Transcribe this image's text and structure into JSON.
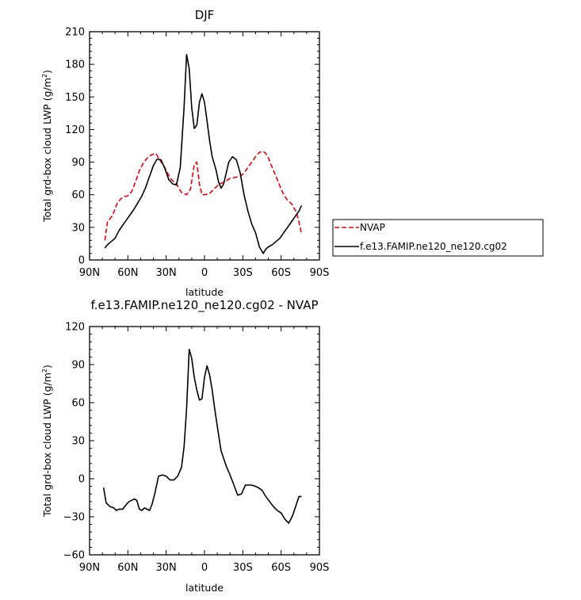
{
  "chart_data": [
    {
      "type": "line",
      "title": "DJF",
      "xlabel": "latitude",
      "ylabel": "Total grd-box cloud LWP (g/m²)",
      "ylabel_main": "Total grd-box cloud LWP (g/m",
      "ylabel_sup": "2",
      "ylabel_end": ")",
      "xlim": [
        -90,
        90
      ],
      "ylim": [
        0,
        210
      ],
      "x_ticks": [
        -90,
        -60,
        -30,
        0,
        30,
        60,
        90
      ],
      "x_tick_labels": [
        "90N",
        "60N",
        "30N",
        "0",
        "30S",
        "60S",
        "90S"
      ],
      "y_ticks": [
        0,
        30,
        60,
        90,
        120,
        150,
        180,
        210
      ],
      "y_tick_labels": [
        "0",
        "30",
        "60",
        "90",
        "120",
        "150",
        "180",
        "210"
      ],
      "legend": {
        "placement": "right",
        "entries": [
          "NVAP",
          "f.e13.FAMIP.ne120_ne120.cg02"
        ]
      },
      "series": [
        {
          "name": "NVAP",
          "color": "#e8000b",
          "dash": "dashed",
          "x": [
            -78,
            -76,
            -72,
            -68,
            -64,
            -60,
            -57,
            -54,
            -51,
            -48,
            -44,
            -41,
            -38,
            -35,
            -32,
            -29,
            -26,
            -22,
            -18,
            -14,
            -11,
            -8,
            -6,
            -4,
            -2,
            0,
            4,
            8,
            12,
            16,
            20,
            24,
            28,
            31,
            34,
            37,
            40,
            43,
            46,
            48,
            50,
            53,
            56,
            59,
            62,
            65,
            68,
            72,
            74,
            76
          ],
          "y": [
            18,
            35,
            41,
            53,
            58,
            59,
            63,
            72,
            82,
            89,
            95,
            97,
            98,
            92,
            87,
            80,
            74,
            70,
            62,
            60,
            65,
            88,
            90,
            70,
            60,
            60,
            61,
            66,
            70,
            72,
            75,
            76,
            77,
            80,
            85,
            90,
            95,
            99,
            100,
            98,
            94,
            85,
            77,
            68,
            60,
            55,
            52,
            44,
            35,
            24
          ]
        },
        {
          "name": "f.e13.FAMIP.ne120_ne120.cg02",
          "color": "#000000",
          "dash": "solid",
          "x": [
            -78,
            -76,
            -73,
            -70,
            -67,
            -64,
            -61,
            -58,
            -55,
            -52,
            -49,
            -46,
            -43,
            -40,
            -37,
            -34,
            -31,
            -28,
            -25,
            -22,
            -19,
            -16,
            -14,
            -12,
            -10,
            -8,
            -6,
            -4,
            -2,
            0,
            2,
            4,
            6,
            9,
            11,
            13,
            15,
            17,
            19,
            22,
            25,
            28,
            31,
            34,
            37,
            40,
            43,
            46,
            48,
            50,
            53,
            56,
            59,
            62,
            65,
            68,
            71,
            74,
            76
          ],
          "y": [
            11,
            14,
            17,
            20,
            27,
            32,
            37,
            42,
            47,
            53,
            59,
            67,
            77,
            87,
            93,
            92,
            84,
            74,
            70,
            69,
            85,
            140,
            189,
            176,
            140,
            121,
            124,
            145,
            153,
            145,
            128,
            110,
            95,
            83,
            72,
            66,
            70,
            80,
            90,
            95,
            92,
            80,
            60,
            45,
            33,
            25,
            12,
            6,
            10,
            12,
            14,
            17,
            20,
            25,
            30,
            35,
            40,
            45,
            50
          ]
        }
      ]
    },
    {
      "type": "line",
      "title": "f.e13.FAMIP.ne120_ne120.cg02 - NVAP",
      "xlabel": "latitude",
      "ylabel": "Total grd-box cloud LWP (g/m²)",
      "ylabel_main": "Total grd-box cloud LWP (g/m",
      "ylabel_sup": "2",
      "ylabel_end": ")",
      "xlim": [
        -90,
        90
      ],
      "ylim": [
        -60,
        120
      ],
      "x_ticks": [
        -90,
        -60,
        -30,
        0,
        30,
        60,
        90
      ],
      "x_tick_labels": [
        "90N",
        "60N",
        "30N",
        "0",
        "30S",
        "60S",
        "90S"
      ],
      "y_ticks": [
        -60,
        -30,
        0,
        30,
        60,
        90,
        120
      ],
      "y_tick_labels": [
        "−60",
        "−30",
        "0",
        "30",
        "60",
        "90",
        "120"
      ],
      "series": [
        {
          "name": "f.e13.FAMIP.ne120_ne120.cg02 - NVAP",
          "color": "#000000",
          "dash": "solid",
          "x": [
            -79,
            -77,
            -74,
            -71,
            -69,
            -67,
            -64,
            -61,
            -59,
            -57,
            -55,
            -53,
            -51,
            -49,
            -47,
            -45,
            -43,
            -41,
            -39,
            -36,
            -33,
            -30,
            -27,
            -24,
            -21,
            -18,
            -16,
            -14,
            -12,
            -10,
            -8,
            -6,
            -4,
            -2,
            0,
            2,
            4,
            6,
            8,
            11,
            13,
            15,
            17,
            20,
            23,
            26,
            29,
            32,
            35,
            37,
            40,
            42,
            45,
            48,
            51,
            54,
            57,
            60,
            63,
            66,
            69,
            72,
            74,
            76
          ],
          "y": [
            -7,
            -19,
            -22,
            -23,
            -25,
            -24,
            -24,
            -20,
            -18,
            -17,
            -16,
            -17,
            -24,
            -25,
            -23,
            -24,
            -25,
            -20,
            -12,
            2,
            3,
            2,
            -1,
            -1,
            2,
            9,
            25,
            55,
            102,
            95,
            80,
            70,
            62,
            63,
            80,
            89,
            82,
            70,
            55,
            35,
            22,
            16,
            10,
            3,
            -5,
            -13,
            -12,
            -5,
            -5,
            -5,
            -6,
            -7,
            -9,
            -14,
            -18,
            -22,
            -25,
            -27,
            -32,
            -35,
            -29,
            -20,
            -14,
            -14
          ]
        }
      ]
    }
  ]
}
